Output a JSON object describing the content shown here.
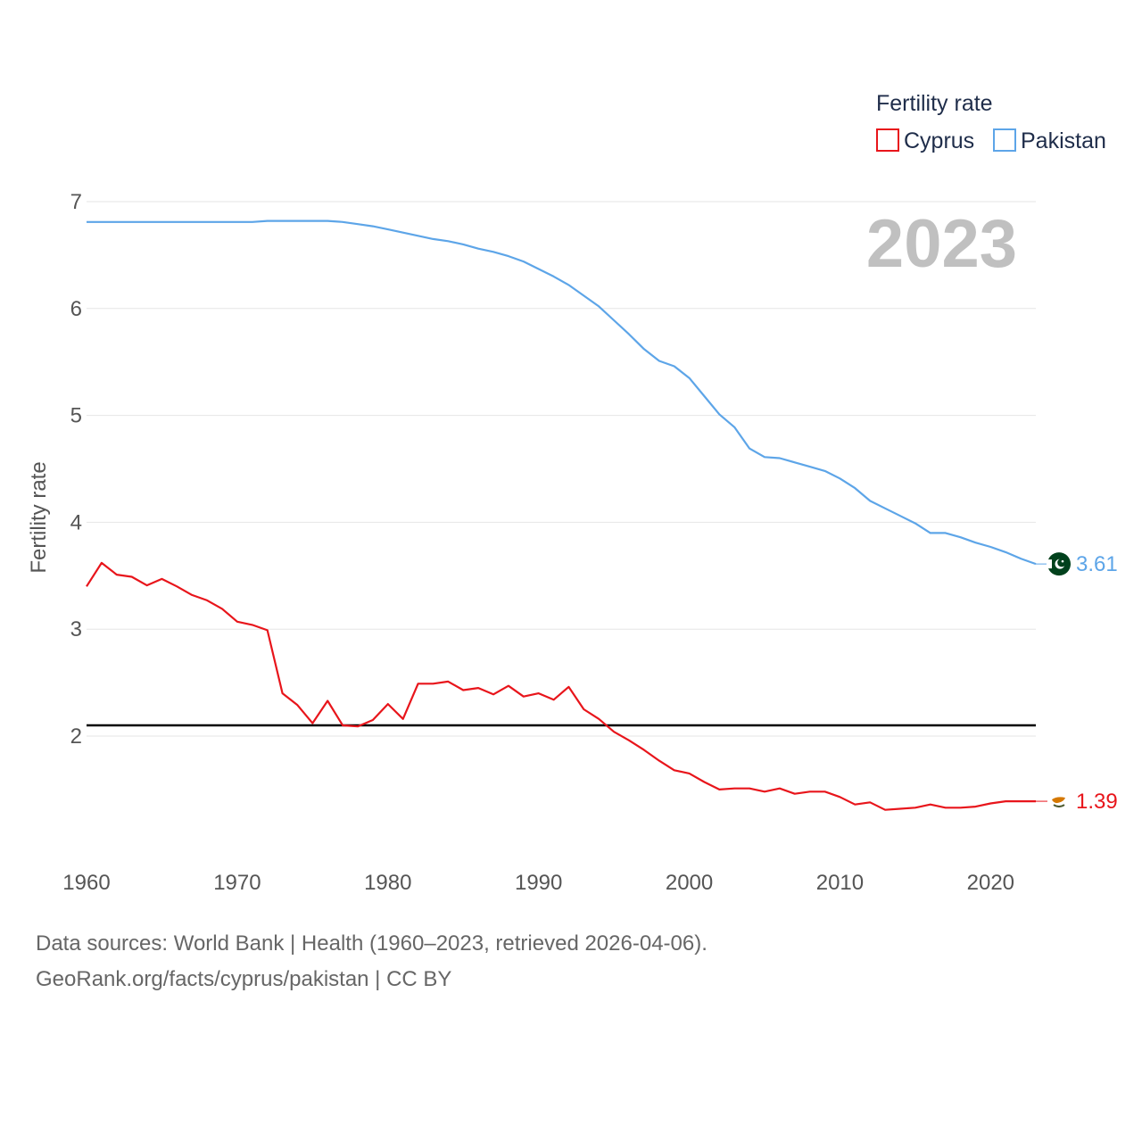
{
  "chart_data": {
    "type": "line",
    "title": "",
    "year_display": "2023",
    "xlabel": "",
    "ylabel": "Fertility rate",
    "xlim": [
      1960,
      2023
    ],
    "ylim": [
      0.8,
      7.2
    ],
    "xticks": [
      1960,
      1970,
      1980,
      1990,
      2000,
      2010,
      2020
    ],
    "yticks": [
      2,
      3,
      4,
      5,
      6,
      7
    ],
    "grid": true,
    "reference_line": 2.1,
    "legend": {
      "title": "Fertility rate",
      "position": "top-right"
    },
    "x": [
      1960,
      1961,
      1962,
      1963,
      1964,
      1965,
      1966,
      1967,
      1968,
      1969,
      1970,
      1971,
      1972,
      1973,
      1974,
      1975,
      1976,
      1977,
      1978,
      1979,
      1980,
      1981,
      1982,
      1983,
      1984,
      1985,
      1986,
      1987,
      1988,
      1989,
      1990,
      1991,
      1992,
      1993,
      1994,
      1995,
      1996,
      1997,
      1998,
      1999,
      2000,
      2001,
      2002,
      2003,
      2004,
      2005,
      2006,
      2007,
      2008,
      2009,
      2010,
      2011,
      2012,
      2013,
      2014,
      2015,
      2016,
      2017,
      2018,
      2019,
      2020,
      2021,
      2022,
      2023
    ],
    "series": [
      {
        "name": "Cyprus",
        "color": "#e8151b",
        "end_label": "1.39",
        "values": [
          3.4,
          3.62,
          3.51,
          3.49,
          3.41,
          3.47,
          3.4,
          3.32,
          3.27,
          3.19,
          3.07,
          3.04,
          2.99,
          2.4,
          2.29,
          2.12,
          2.33,
          2.1,
          2.09,
          2.15,
          2.3,
          2.16,
          2.49,
          2.49,
          2.51,
          2.43,
          2.45,
          2.39,
          2.47,
          2.37,
          2.4,
          2.34,
          2.46,
          2.25,
          2.16,
          2.04,
          1.96,
          1.87,
          1.77,
          1.68,
          1.65,
          1.57,
          1.5,
          1.51,
          1.51,
          1.48,
          1.51,
          1.46,
          1.48,
          1.48,
          1.43,
          1.36,
          1.38,
          1.31,
          1.32,
          1.33,
          1.36,
          1.33,
          1.33,
          1.34,
          1.37,
          1.39,
          1.39,
          1.39
        ]
      },
      {
        "name": "Pakistan",
        "color": "#5da5e8",
        "end_label": "3.61",
        "values": [
          6.81,
          6.81,
          6.81,
          6.81,
          6.81,
          6.81,
          6.81,
          6.81,
          6.81,
          6.81,
          6.81,
          6.81,
          6.82,
          6.82,
          6.82,
          6.82,
          6.82,
          6.81,
          6.79,
          6.77,
          6.74,
          6.71,
          6.68,
          6.65,
          6.63,
          6.6,
          6.56,
          6.53,
          6.49,
          6.44,
          6.37,
          6.3,
          6.22,
          6.12,
          6.02,
          5.89,
          5.76,
          5.62,
          5.51,
          5.46,
          5.35,
          5.18,
          5.01,
          4.89,
          4.69,
          4.61,
          4.6,
          4.56,
          4.52,
          4.48,
          4.41,
          4.32,
          4.2,
          4.13,
          4.06,
          3.99,
          3.9,
          3.9,
          3.86,
          3.81,
          3.77,
          3.72,
          3.66,
          3.61
        ]
      }
    ]
  },
  "footer": {
    "line1": "Data sources: World Bank | Health (1960–2023, retrieved 2026-04-06).",
    "line2": "GeoRank.org/facts/cyprus/pakistan | CC BY"
  },
  "colors": {
    "grid": "#e6e6e6",
    "reference": "#000000",
    "year": "#c0c0c0",
    "text": "#555555"
  }
}
